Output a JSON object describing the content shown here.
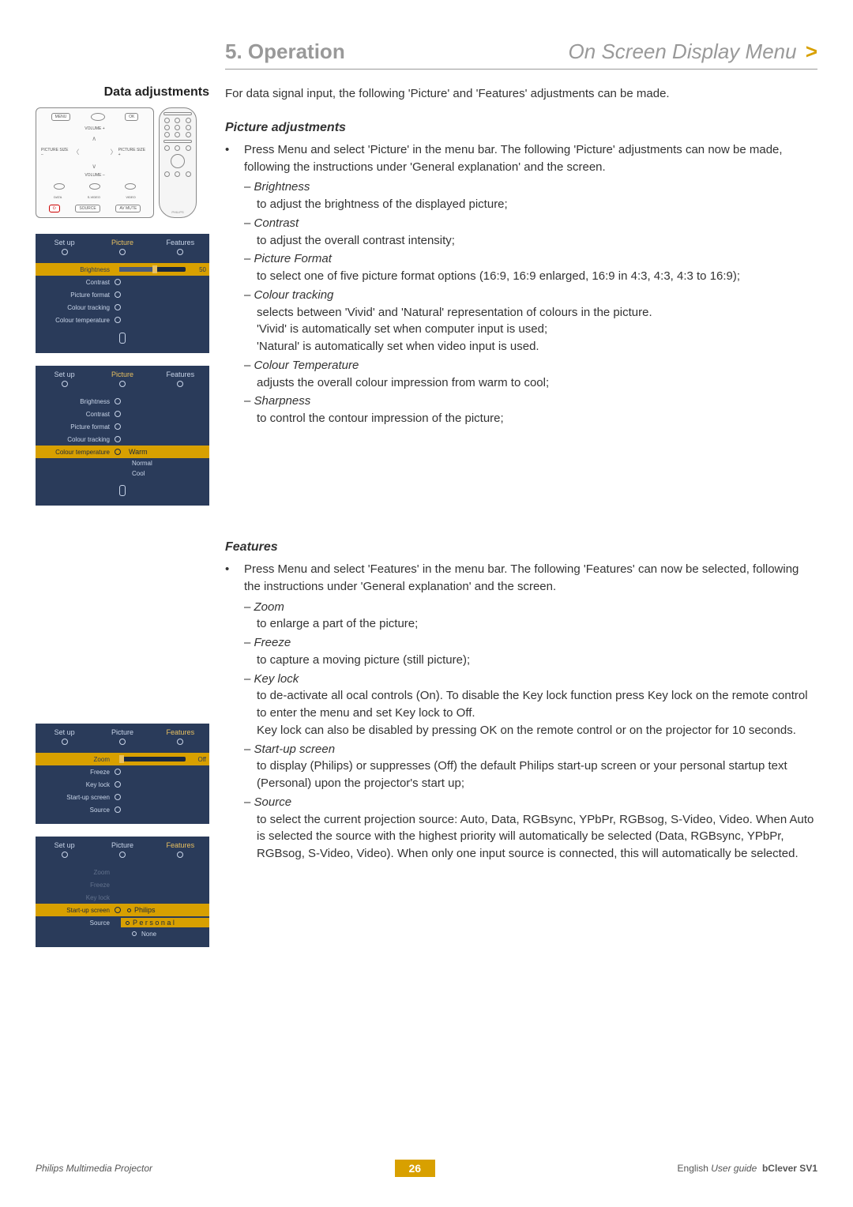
{
  "header": {
    "left": "5. Operation",
    "right": "On Screen Display Menu",
    "arrow": ">"
  },
  "section_label": "Data adjustments",
  "intro": "For data signal input, the following 'Picture' and 'Features' adjustments can be made.",
  "picture": {
    "heading": "Picture adjustments",
    "bullet": "Press Menu and select 'Picture' in the menu bar.  The following 'Picture' adjustments can now be made, following the instructions under 'General explanation' and the screen.",
    "items": [
      {
        "name": "Brightness",
        "desc": "to adjust the brightness of the displayed picture;"
      },
      {
        "name": "Contrast",
        "desc": "to adjust the overall contrast intensity;"
      },
      {
        "name": "Picture Format",
        "desc": "to select one of five picture format options (16:9, 16:9 enlarged, 16:9 in 4:3, 4:3, 4:3 to 16:9);"
      },
      {
        "name": "Colour tracking",
        "desc": "selects between 'Vivid' and 'Natural' representation of colours in the picture.\n'Vivid' is automatically set when computer input is used;\n'Natural' is automatically set when video input is used."
      },
      {
        "name": "Colour Temperature",
        "desc": "adjusts the overall colour impression from warm to cool;"
      },
      {
        "name": "Sharpness",
        "desc": "to control the contour impression of the picture;"
      }
    ]
  },
  "features": {
    "heading": "Features",
    "bullet": "Press Menu and select 'Features' in the menu bar.  The following 'Features' can now be selected, following the instructions under 'General explanation' and the screen.",
    "items": [
      {
        "name": "Zoom",
        "desc": "to enlarge a part of the picture;"
      },
      {
        "name": "Freeze",
        "desc": "to capture a moving picture (still picture);"
      },
      {
        "name": "Key lock",
        "desc": "to de-activate all ocal controls (On). To disable the Key lock function press Key lock on the remote control to enter the menu and set Key lock to Off.\nKey lock can also be disabled by pressing OK on the remote control or on the projector for 10 seconds."
      },
      {
        "name": "Start-up screen",
        "desc": "to display (Philips) or suppresses (Off) the default Philips start-up screen or your personal startup text (Personal) upon the projector's start up;"
      },
      {
        "name": "Source",
        "desc": "to select the current projection source: Auto, Data, RGBsync, YPbPr, RGBsog, S-Video, Video. When Auto is selected the source with the highest priority will automatically be selected (Data, RGBsync, YPbPr, RGBsog, S-Video, Video). When only one input source is connected, this will automatically be selected."
      }
    ]
  },
  "keypad": {
    "top": [
      "MENU",
      "OK"
    ],
    "vol_labels": [
      "VOLUME +",
      "VOLUME –"
    ],
    "side_labels": [
      "PICTURE SIZE –",
      "PICTURE SIZE +"
    ],
    "bottom_small": [
      "DATA",
      "S-VIDEO",
      "VIDEO"
    ],
    "bottom": [
      "STANDBY",
      "SOURCE",
      "AV MUTE"
    ]
  },
  "remote_brand": "PHILIPS",
  "osd1": {
    "tabs": [
      "Set up",
      "Picture",
      "Features"
    ],
    "active_tab": 1,
    "rows": [
      "Brightness",
      "Contrast",
      "Picture format",
      "Colour tracking",
      "Colour temperature"
    ],
    "highlight": 0,
    "slider_value": 50,
    "slider_label": "50"
  },
  "osd2": {
    "tabs": [
      "Set up",
      "Picture",
      "Features"
    ],
    "active_tab": 1,
    "rows": [
      "Brightness",
      "Contrast",
      "Picture format",
      "Colour tracking",
      "Colour temperature"
    ],
    "highlight": 4,
    "options": [
      "Warm",
      "Normal",
      "Cool"
    ]
  },
  "osd3": {
    "tabs": [
      "Set up",
      "Picture",
      "Features"
    ],
    "active_tab": 2,
    "rows": [
      "Zoom",
      "Freeze",
      "Key lock",
      "Start-up screen",
      "Source"
    ],
    "highlight": 0,
    "slider_label": "Off"
  },
  "osd4": {
    "tabs": [
      "Set up",
      "Picture",
      "Features"
    ],
    "active_tab": 2,
    "rows": [
      "Zoom",
      "Freeze",
      "Key lock",
      "Start-up screen",
      "Source"
    ],
    "highlight": 3,
    "options": [
      "Philips",
      "P e r s o n a l",
      "None"
    ],
    "option_hl": 1
  },
  "footer": {
    "left": "Philips Multimedia Projector",
    "page": "26",
    "right_lang": "English",
    "right_guide": "User guide",
    "right_model": "bClever SV1"
  },
  "colors": {
    "accent": "#d8a000",
    "osd_bg": "#2a3b5a",
    "osd_text": "#c8d4e8"
  }
}
